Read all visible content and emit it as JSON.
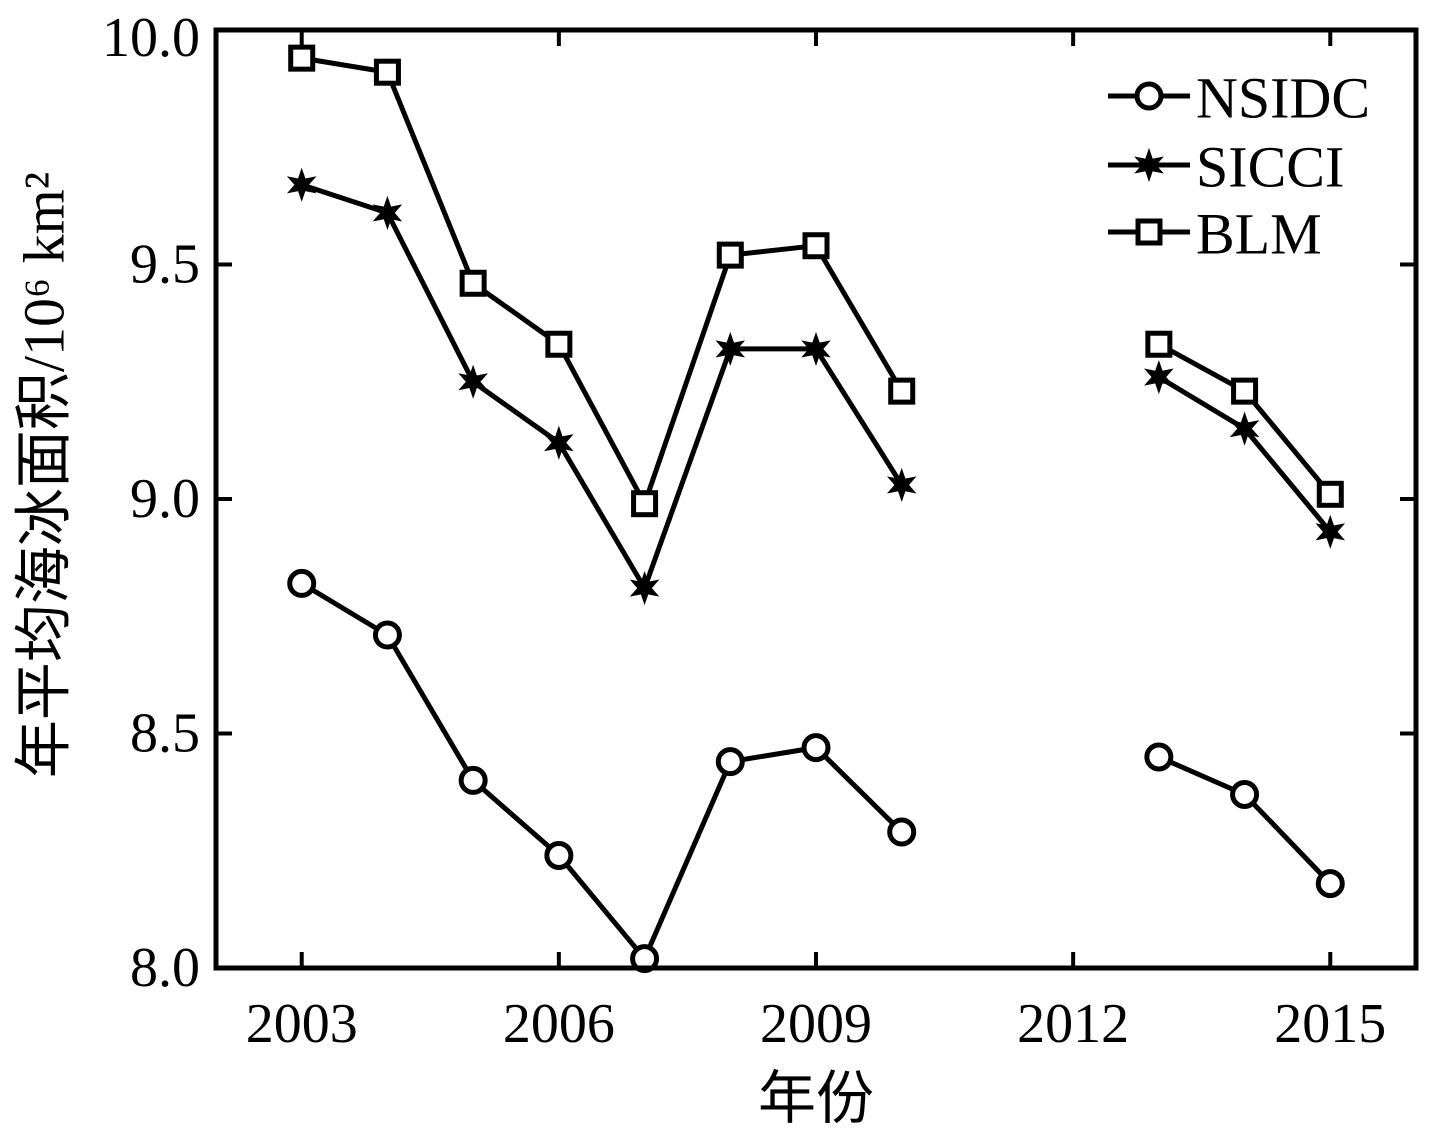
{
  "chart_data": {
    "type": "line",
    "x": [
      2003,
      2004,
      2005,
      2006,
      2007,
      2008,
      2009,
      2010,
      2011,
      2012,
      2013,
      2014,
      2015
    ],
    "series": [
      {
        "name": "NSIDC",
        "marker": "open-circle",
        "values": [
          8.82,
          8.71,
          8.4,
          8.24,
          8.02,
          8.44,
          8.47,
          8.29,
          null,
          null,
          8.45,
          8.37,
          8.18
        ]
      },
      {
        "name": "SICCI",
        "marker": "star",
        "values": [
          9.67,
          9.61,
          9.25,
          9.12,
          8.81,
          9.32,
          9.32,
          9.03,
          null,
          null,
          9.26,
          9.15,
          8.93
        ]
      },
      {
        "name": "BLM",
        "marker": "open-square",
        "values": [
          9.94,
          9.91,
          9.46,
          9.33,
          8.99,
          9.52,
          9.54,
          9.23,
          null,
          null,
          9.33,
          9.23,
          9.01
        ]
      }
    ],
    "xlabel": "年份",
    "ylabel": "年平均海冰面积/10⁶ km²",
    "xlim": [
      2002,
      2016
    ],
    "ylim": [
      8.0,
      10.0
    ],
    "x_ticks": [
      2003,
      2006,
      2009,
      2012,
      2015
    ],
    "x_tick_labels": [
      "2003",
      "2006",
      "2009",
      "2012",
      "2015"
    ],
    "y_ticks": [
      8.0,
      8.5,
      9.0,
      9.5,
      10.0
    ],
    "y_tick_labels": [
      "8.0",
      "8.5",
      "9.0",
      "9.5",
      "10.0"
    ],
    "legend": "top-right",
    "grid": false,
    "line_color": "#000000",
    "background_color": "#ffffff"
  }
}
